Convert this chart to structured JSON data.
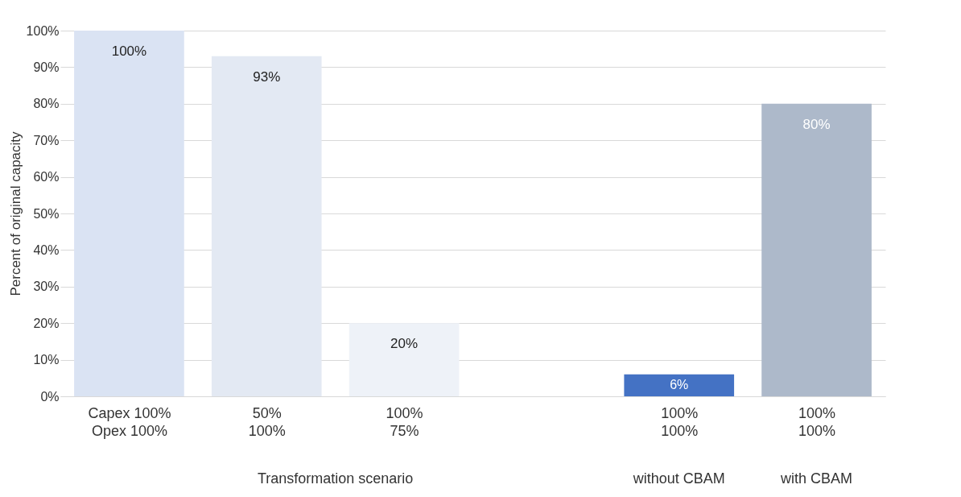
{
  "chart_data": {
    "type": "bar",
    "ylabel": "Percent of original capacity",
    "categories": [
      "Capex 100%\nOpex 100%",
      "50%\n100%",
      "100%\n75%",
      null,
      "100%\n100%",
      "100%\n100%"
    ],
    "values": [
      100,
      93,
      20,
      null,
      6,
      80
    ],
    "colors": [
      "#dae3f3",
      "#e3e9f3",
      "#eef2f8",
      "#ffffff",
      "#4472c4",
      "#adb9ca"
    ],
    "value_labels": [
      "100%",
      "93%",
      "20%",
      null,
      "6%",
      "80%"
    ],
    "ylim": [
      0,
      100
    ],
    "yticks": [
      {
        "value": 0,
        "label": "0%"
      },
      {
        "value": 10,
        "label": "10%"
      },
      {
        "value": 20,
        "label": "20%"
      },
      {
        "value": 30,
        "label": "30%"
      },
      {
        "value": 40,
        "label": "40%"
      },
      {
        "value": 50,
        "label": "50%"
      },
      {
        "value": 60,
        "label": "60%"
      },
      {
        "value": 70,
        "label": "70%"
      },
      {
        "value": 80,
        "label": "80%"
      },
      {
        "value": 90,
        "label": "90%"
      },
      {
        "value": 100,
        "label": "100%"
      }
    ],
    "grid": "y",
    "annotations": [
      "Transformation scenario",
      "without CBAM",
      "with CBAM"
    ]
  }
}
